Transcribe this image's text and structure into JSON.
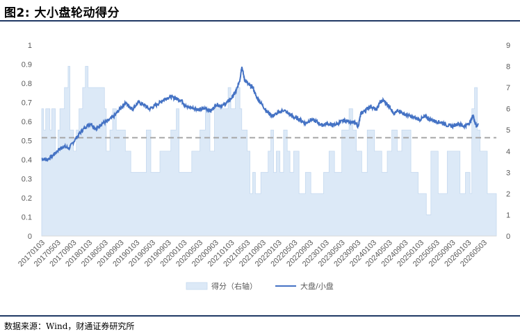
{
  "figure": {
    "title": "图2: 大小盘轮动得分",
    "source": "数据来源：Wind，财通证券研究所"
  },
  "chart_data": {
    "type": "line",
    "title": "",
    "y_left": {
      "lim": [
        0,
        1
      ],
      "ticks": [
        "0",
        "0.1",
        "0.2",
        "0.3",
        "0.4",
        "0.5",
        "0.6",
        "0.7",
        "0.8",
        "0.9",
        "1"
      ]
    },
    "y_right": {
      "lim": [
        0,
        9
      ],
      "ticks": [
        "0",
        "1",
        "2",
        "3",
        "4",
        "5",
        "6",
        "7",
        "8",
        "9"
      ]
    },
    "x_ticks": [
      "20170103",
      "20170503",
      "20170903",
      "20180103",
      "20180503",
      "20180903",
      "20190103",
      "20190503",
      "20190903",
      "20200103",
      "20200503",
      "20200903",
      "20210103",
      "20210503",
      "20210903",
      "20220103",
      "20220503",
      "20220903",
      "20230103",
      "20230503",
      "20230903",
      "20240103",
      "20240503",
      "20240903",
      "20250103",
      "20250503",
      "20250903",
      "20260103",
      "20260503"
    ],
    "threshold": {
      "value": 0.515,
      "style": "dashed",
      "color": "#a6a6a6"
    },
    "legend": {
      "position": "bottom",
      "entries": [
        "得分（右轴）",
        "大盘/小盘"
      ]
    },
    "series": [
      {
        "name": "得分（右轴）",
        "kind": "area-step",
        "axis": "right",
        "color": "#dce9f7",
        "points": [
          [
            0,
            6
          ],
          [
            0.1,
            5
          ],
          [
            0.22,
            6
          ],
          [
            0.45,
            5
          ],
          [
            0.55,
            6
          ],
          [
            0.75,
            4
          ],
          [
            0.9,
            5
          ],
          [
            1.0,
            6
          ],
          [
            1.25,
            7
          ],
          [
            1.45,
            8
          ],
          [
            1.55,
            5
          ],
          [
            1.75,
            4
          ],
          [
            1.9,
            5
          ],
          [
            2.05,
            6
          ],
          [
            2.25,
            7
          ],
          [
            2.4,
            8
          ],
          [
            2.55,
            7
          ],
          [
            3.0,
            7
          ],
          [
            3.45,
            6
          ],
          [
            3.55,
            4
          ],
          [
            3.75,
            5
          ],
          [
            3.9,
            6
          ],
          [
            4.1,
            5
          ],
          [
            4.6,
            4
          ],
          [
            4.9,
            3
          ],
          [
            5.75,
            5
          ],
          [
            6.0,
            3
          ],
          [
            6.5,
            4
          ],
          [
            7.1,
            5
          ],
          [
            7.4,
            6
          ],
          [
            7.55,
            3
          ],
          [
            8.25,
            4
          ],
          [
            8.7,
            5
          ],
          [
            9.0,
            6
          ],
          [
            9.25,
            4
          ],
          [
            9.5,
            6
          ],
          [
            10.25,
            7
          ],
          [
            10.4,
            6
          ],
          [
            10.65,
            7
          ],
          [
            10.9,
            6
          ],
          [
            11.0,
            5
          ],
          [
            11.3,
            4
          ],
          [
            11.45,
            2
          ],
          [
            11.6,
            3
          ],
          [
            11.75,
            2
          ],
          [
            12.05,
            3
          ],
          [
            12.45,
            4
          ],
          [
            12.6,
            5
          ],
          [
            12.75,
            3
          ],
          [
            12.9,
            4
          ],
          [
            13.1,
            3
          ],
          [
            13.3,
            5
          ],
          [
            13.5,
            4
          ],
          [
            13.65,
            3
          ],
          [
            13.85,
            4
          ],
          [
            14.15,
            2
          ],
          [
            14.5,
            3
          ],
          [
            14.8,
            2
          ],
          [
            15.5,
            3
          ],
          [
            15.8,
            4
          ],
          [
            16.1,
            3
          ],
          [
            16.5,
            5
          ],
          [
            16.9,
            6
          ],
          [
            17.1,
            5
          ],
          [
            17.3,
            4
          ],
          [
            17.6,
            3
          ],
          [
            17.9,
            5
          ],
          [
            18.3,
            4
          ],
          [
            18.7,
            3
          ],
          [
            19.0,
            4
          ],
          [
            19.25,
            5
          ],
          [
            19.55,
            4
          ],
          [
            19.8,
            5
          ],
          [
            20.3,
            3
          ],
          [
            20.7,
            2
          ],
          [
            21.0,
            2
          ],
          [
            21.15,
            1
          ],
          [
            21.4,
            4
          ],
          [
            21.8,
            2
          ],
          [
            22.3,
            4
          ],
          [
            23.0,
            2
          ],
          [
            23.3,
            3
          ],
          [
            23.55,
            2
          ],
          [
            23.65,
            6
          ],
          [
            23.8,
            7
          ],
          [
            23.95,
            5
          ],
          [
            24.1,
            4
          ],
          [
            24.5,
            2
          ],
          [
            25.0,
            2
          ]
        ]
      },
      {
        "name": "大盘/小盘",
        "kind": "line",
        "axis": "left",
        "color": "#4472c4",
        "points": [
          [
            0,
            0.405
          ],
          [
            0.3,
            0.4
          ],
          [
            0.6,
            0.42
          ],
          [
            0.9,
            0.45
          ],
          [
            1.2,
            0.47
          ],
          [
            1.5,
            0.46
          ],
          [
            1.8,
            0.5
          ],
          [
            2.1,
            0.54
          ],
          [
            2.4,
            0.57
          ],
          [
            2.7,
            0.59
          ],
          [
            3.0,
            0.56
          ],
          [
            3.3,
            0.59
          ],
          [
            3.6,
            0.6
          ],
          [
            4.0,
            0.63
          ],
          [
            4.3,
            0.665
          ],
          [
            4.6,
            0.7
          ],
          [
            4.8,
            0.68
          ],
          [
            5.0,
            0.665
          ],
          [
            5.3,
            0.7
          ],
          [
            5.6,
            0.69
          ],
          [
            5.9,
            0.665
          ],
          [
            6.2,
            0.68
          ],
          [
            6.5,
            0.7
          ],
          [
            6.8,
            0.72
          ],
          [
            7.1,
            0.73
          ],
          [
            7.4,
            0.72
          ],
          [
            7.7,
            0.71
          ],
          [
            7.9,
            0.68
          ],
          [
            8.1,
            0.675
          ],
          [
            8.4,
            0.67
          ],
          [
            8.7,
            0.66
          ],
          [
            9.0,
            0.67
          ],
          [
            9.3,
            0.655
          ],
          [
            9.6,
            0.69
          ],
          [
            9.9,
            0.68
          ],
          [
            10.2,
            0.7
          ],
          [
            10.5,
            0.73
          ],
          [
            10.7,
            0.76
          ],
          [
            10.9,
            0.82
          ],
          [
            11.0,
            0.89
          ],
          [
            11.15,
            0.82
          ],
          [
            11.4,
            0.79
          ],
          [
            11.6,
            0.78
          ],
          [
            11.8,
            0.73
          ],
          [
            12.1,
            0.69
          ],
          [
            12.4,
            0.65
          ],
          [
            12.7,
            0.63
          ],
          [
            13.0,
            0.645
          ],
          [
            13.3,
            0.66
          ],
          [
            13.6,
            0.64
          ],
          [
            13.9,
            0.62
          ],
          [
            14.2,
            0.61
          ],
          [
            14.5,
            0.59
          ],
          [
            14.8,
            0.61
          ],
          [
            15.1,
            0.6
          ],
          [
            15.4,
            0.58
          ],
          [
            15.7,
            0.59
          ],
          [
            16.0,
            0.58
          ],
          [
            16.3,
            0.59
          ],
          [
            16.6,
            0.605
          ],
          [
            16.9,
            0.6
          ],
          [
            17.2,
            0.595
          ],
          [
            17.4,
            0.575
          ],
          [
            17.55,
            0.64
          ],
          [
            17.8,
            0.66
          ],
          [
            18.1,
            0.68
          ],
          [
            18.4,
            0.66
          ],
          [
            18.6,
            0.7
          ],
          [
            18.8,
            0.71
          ],
          [
            19.0,
            0.69
          ],
          [
            19.2,
            0.67
          ],
          [
            19.35,
            0.635
          ],
          [
            19.6,
            0.66
          ],
          [
            19.9,
            0.64
          ],
          [
            20.2,
            0.63
          ],
          [
            20.5,
            0.62
          ],
          [
            20.8,
            0.61
          ],
          [
            21.1,
            0.625
          ],
          [
            21.4,
            0.61
          ],
          [
            21.7,
            0.6
          ],
          [
            22.0,
            0.595
          ],
          [
            22.3,
            0.58
          ],
          [
            22.6,
            0.575
          ],
          [
            22.9,
            0.59
          ],
          [
            23.2,
            0.575
          ],
          [
            23.45,
            0.585
          ],
          [
            23.6,
            0.605
          ],
          [
            23.72,
            0.635
          ],
          [
            23.8,
            0.6
          ],
          [
            23.9,
            0.575
          ],
          [
            24.0,
            0.585
          ]
        ]
      }
    ]
  }
}
